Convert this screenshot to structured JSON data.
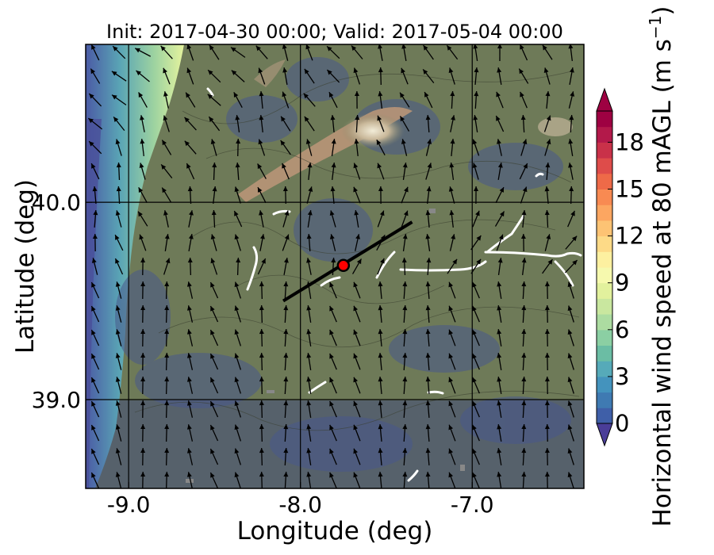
{
  "chart_data": {
    "type": "heatmap",
    "title": "Init: 2017-04-30 00:00; Valid: 2017-05-04 00:00",
    "xlabel": "Longitude (deg)",
    "ylabel": "Latitude (deg)",
    "xlim": [
      -9.25,
      -6.35
    ],
    "ylim": [
      38.55,
      40.8
    ],
    "xticks": [
      -9.0,
      -8.0,
      -7.0
    ],
    "xtick_labels": [
      "-9.0",
      "-8.0",
      "-7.0"
    ],
    "yticks": [
      39.0,
      40.0
    ],
    "ytick_labels": [
      "39.0",
      "40.0"
    ],
    "grid": true,
    "colorbar": {
      "label": "Horizontal wind speed at 80 mAGL (m s$^{-1}$)",
      "label_main": "Horizontal wind speed at 80 mAGL (m s",
      "label_sup": "−1",
      "label_end": ")",
      "range": [
        0,
        20
      ],
      "levels": [
        0,
        1,
        2,
        3,
        4,
        5,
        6,
        7,
        8,
        9,
        10,
        11,
        12,
        13,
        14,
        15,
        16,
        17,
        18,
        19,
        20
      ],
      "ticks": [
        0,
        3,
        6,
        9,
        12,
        15,
        18
      ],
      "tick_labels": [
        "0",
        "3",
        "6",
        "9",
        "12",
        "15",
        "18"
      ],
      "extend": "both",
      "colors": [
        "#3f5fa8",
        "#3f7ab2",
        "#4493bd",
        "#56aab9",
        "#6bbda4",
        "#8bcfa3",
        "#acdca1",
        "#c9e79f",
        "#e2f19d",
        "#f6f9ae",
        "#fdf0a0",
        "#fdda87",
        "#fdc374",
        "#fca661",
        "#f88a52",
        "#ee6a48",
        "#de4c4a",
        "#c93149",
        "#b3194a",
        "#9e0142"
      ],
      "under_color": "#4a3d98",
      "over_color": "#9e0142"
    },
    "transect": {
      "start": [
        -8.1,
        39.5
      ],
      "end": [
        -7.35,
        39.9
      ]
    },
    "site_marker": {
      "lon": -7.75,
      "lat": 39.68,
      "color": "#ff0000"
    }
  }
}
